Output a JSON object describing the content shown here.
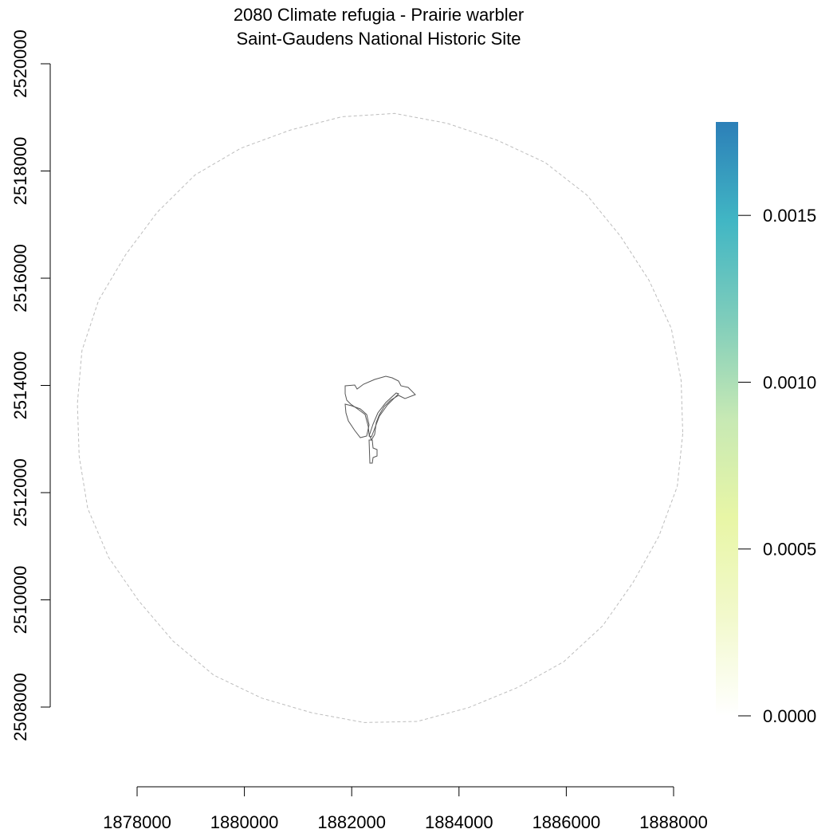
{
  "title": {
    "line1": "2080 Climate refugia - Prairie warbler",
    "line2": "Saint-Gaudens National Historic Site"
  },
  "x_axis": {
    "ticks": [
      "1878000",
      "1880000",
      "1882000",
      "1884000",
      "1886000",
      "1888000"
    ],
    "range": [
      1878000,
      1888000
    ]
  },
  "y_axis": {
    "ticks": [
      "2508000",
      "2510000",
      "2512000",
      "2514000",
      "2516000",
      "2518000",
      "2520000"
    ],
    "range": [
      2508000,
      2520000
    ]
  },
  "legend": {
    "ticks": [
      "0.0000",
      "0.0005",
      "0.0010",
      "0.0015"
    ],
    "range": [
      0,
      0.00178
    ],
    "colors": [
      "#ffffff",
      "#f2f9cc",
      "#e8f6a6",
      "#c7e9b4",
      "#7fcdbb",
      "#41b6c4",
      "#2c7fb8"
    ]
  },
  "map": {
    "buffer_style": "dashed light grey circle",
    "boundary_color": "#555555"
  }
}
